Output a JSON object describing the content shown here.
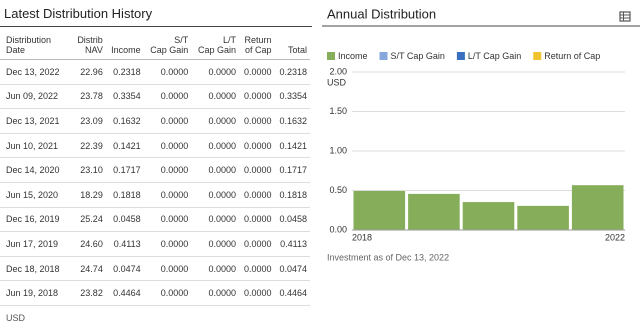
{
  "table": {
    "title": "Latest Distribution History",
    "columns": [
      "Distribution\nDate",
      "Distrib\nNAV",
      "Income",
      "S/T\nCap Gain",
      "L/T\nCap Gain",
      "Return\nof Cap",
      "Total"
    ],
    "rows": [
      [
        "Dec 13, 2022",
        "22.96",
        "0.2318",
        "0.0000",
        "0.0000",
        "0.0000",
        "0.2318"
      ],
      [
        "Jun 09, 2022",
        "23.78",
        "0.3354",
        "0.0000",
        "0.0000",
        "0.0000",
        "0.3354"
      ],
      [
        "Dec 13, 2021",
        "23.09",
        "0.1632",
        "0.0000",
        "0.0000",
        "0.0000",
        "0.1632"
      ],
      [
        "Jun 10, 2021",
        "22.39",
        "0.1421",
        "0.0000",
        "0.0000",
        "0.0000",
        "0.1421"
      ],
      [
        "Dec 14, 2020",
        "23.10",
        "0.1717",
        "0.0000",
        "0.0000",
        "0.0000",
        "0.1717"
      ],
      [
        "Jun 15, 2020",
        "18.29",
        "0.1818",
        "0.0000",
        "0.0000",
        "0.0000",
        "0.1818"
      ],
      [
        "Dec 16, 2019",
        "25.24",
        "0.0458",
        "0.0000",
        "0.0000",
        "0.0000",
        "0.0458"
      ],
      [
        "Jun 17, 2019",
        "24.60",
        "0.4113",
        "0.0000",
        "0.0000",
        "0.0000",
        "0.4113"
      ],
      [
        "Dec 18, 2018",
        "24.74",
        "0.0474",
        "0.0000",
        "0.0000",
        "0.0000",
        "0.0474"
      ],
      [
        "Jun 19, 2018",
        "23.82",
        "0.4464",
        "0.0000",
        "0.0000",
        "0.0000",
        "0.4464"
      ]
    ],
    "footnote": "USD"
  },
  "chart_data": {
    "type": "bar",
    "title": "Annual Distribution",
    "y_unit": "USD",
    "categories": [
      "2018",
      null,
      null,
      null,
      "2022"
    ],
    "series": [
      {
        "name": "Income",
        "color": "#86ad5a",
        "values": [
          0.4938,
          0.4571,
          0.3535,
          0.3053,
          0.5672
        ]
      },
      {
        "name": "S/T Cap Gain",
        "color": "#86a8dc",
        "values": [
          0,
          0,
          0,
          0,
          0
        ]
      },
      {
        "name": "L/T Cap Gain",
        "color": "#3b6fc2",
        "values": [
          0,
          0,
          0,
          0,
          0
        ]
      },
      {
        "name": "Return of Cap",
        "color": "#f0c430",
        "values": [
          0,
          0,
          0,
          0,
          0
        ]
      }
    ],
    "ylim": [
      0,
      2
    ],
    "yticks": [
      {
        "value": 0,
        "label": "0.00"
      },
      {
        "value": 0.5,
        "label": "0.50"
      },
      {
        "value": 1,
        "label": "1.00"
      },
      {
        "value": 1.5,
        "label": "1.50"
      },
      {
        "value": 2,
        "label": "2.00"
      }
    ],
    "grid": true,
    "footnote": "Investment as of Dec 13, 2022"
  }
}
